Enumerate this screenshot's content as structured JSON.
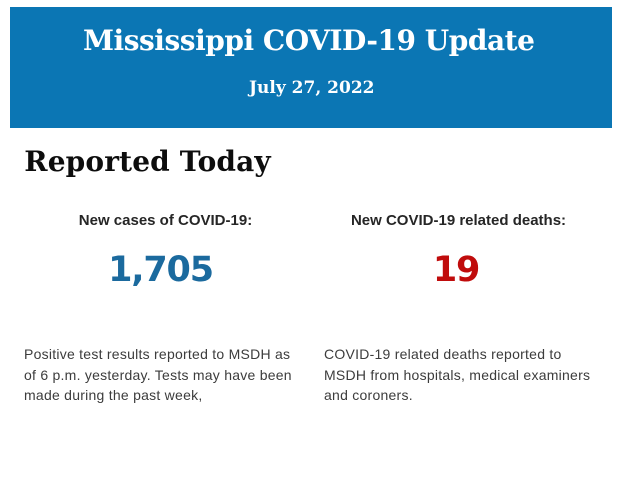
{
  "banner": {
    "title": "Mississippi COVID-19 Update",
    "date": "July 27, 2022",
    "background": "#0b76b4",
    "text_color": "#ffffff"
  },
  "main": {
    "heading": "Reported Today",
    "stats": [
      {
        "label": "New cases of COVID-19:",
        "value": "1,705",
        "value_color": "#1b6a9e",
        "description_lines": [
          "Positive test results reported to MSDH as",
          "of 6 p.m. yesterday. Tests may have been",
          "made during the past week,"
        ]
      },
      {
        "label": "New COVID-19 related deaths:",
        "value": "19",
        "value_color": "#c00c0c",
        "description_lines": [
          "COVID-19 related deaths reported to",
          "MSDH from hospitals, medical examiners",
          "and coroners."
        ]
      }
    ]
  }
}
